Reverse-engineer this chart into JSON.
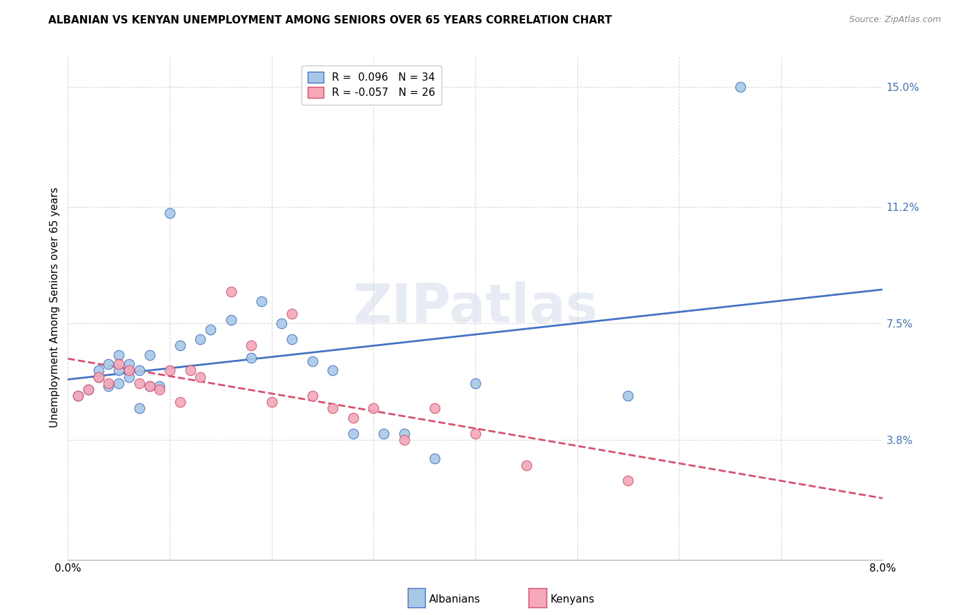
{
  "title": "ALBANIAN VS KENYAN UNEMPLOYMENT AMONG SENIORS OVER 65 YEARS CORRELATION CHART",
  "source": "Source: ZipAtlas.com",
  "ylabel": "Unemployment Among Seniors over 65 years",
  "xlim": [
    0.0,
    0.08
  ],
  "ylim": [
    0.0,
    0.16
  ],
  "xticks": [
    0.0,
    0.01,
    0.02,
    0.03,
    0.04,
    0.05,
    0.06,
    0.07,
    0.08
  ],
  "xticklabels": [
    "0.0%",
    "",
    "",
    "",
    "",
    "",
    "",
    "",
    "8.0%"
  ],
  "ytick_right_labels": [
    "3.8%",
    "7.5%",
    "11.2%",
    "15.0%"
  ],
  "ytick_right_values": [
    0.038,
    0.075,
    0.112,
    0.15
  ],
  "albanian_R": 0.096,
  "albanian_N": 34,
  "kenyan_R": -0.057,
  "kenyan_N": 26,
  "albanian_color": "#a8c8e8",
  "albanian_line_color": "#4472c4",
  "kenyan_color": "#f4a8b8",
  "kenyan_line_color": "#d94f6e",
  "watermark_text": "ZIPatlas",
  "albanian_x": [
    0.001,
    0.002,
    0.003,
    0.003,
    0.004,
    0.004,
    0.005,
    0.005,
    0.005,
    0.006,
    0.006,
    0.007,
    0.007,
    0.008,
    0.008,
    0.009,
    0.01,
    0.011,
    0.013,
    0.014,
    0.016,
    0.018,
    0.019,
    0.021,
    0.022,
    0.024,
    0.026,
    0.028,
    0.031,
    0.033,
    0.036,
    0.04,
    0.055,
    0.066
  ],
  "albanian_y": [
    0.052,
    0.054,
    0.058,
    0.06,
    0.055,
    0.062,
    0.056,
    0.06,
    0.065,
    0.058,
    0.062,
    0.06,
    0.048,
    0.055,
    0.065,
    0.055,
    0.11,
    0.068,
    0.07,
    0.073,
    0.076,
    0.064,
    0.082,
    0.075,
    0.07,
    0.063,
    0.06,
    0.04,
    0.04,
    0.04,
    0.032,
    0.056,
    0.052,
    0.15
  ],
  "kenyan_x": [
    0.001,
    0.002,
    0.003,
    0.004,
    0.005,
    0.006,
    0.007,
    0.008,
    0.009,
    0.01,
    0.011,
    0.012,
    0.013,
    0.016,
    0.018,
    0.02,
    0.022,
    0.024,
    0.026,
    0.028,
    0.03,
    0.033,
    0.036,
    0.04,
    0.045,
    0.055
  ],
  "kenyan_y": [
    0.052,
    0.054,
    0.058,
    0.056,
    0.062,
    0.06,
    0.056,
    0.055,
    0.054,
    0.06,
    0.05,
    0.06,
    0.058,
    0.085,
    0.068,
    0.05,
    0.078,
    0.052,
    0.048,
    0.045,
    0.048,
    0.038,
    0.048,
    0.04,
    0.03,
    0.025
  ]
}
